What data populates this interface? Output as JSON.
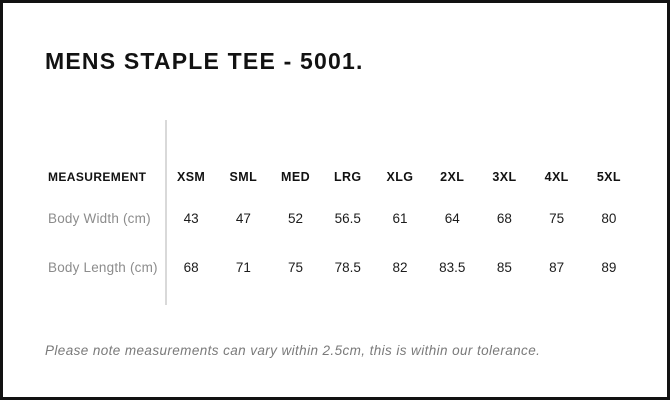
{
  "title": "MENS STAPLE TEE - 5001.",
  "table": {
    "measurement_header": "MEASUREMENT",
    "sizes": [
      "XSM",
      "SML",
      "MED",
      "LRG",
      "XLG",
      "2XL",
      "3XL",
      "4XL",
      "5XL"
    ],
    "rows": [
      {
        "label": "Body Width (cm)",
        "values": [
          "43",
          "47",
          "52",
          "56.5",
          "61",
          "64",
          "68",
          "75",
          "80"
        ]
      },
      {
        "label": "Body Length (cm)",
        "values": [
          "68",
          "71",
          "75",
          "78.5",
          "82",
          "83.5",
          "85",
          "87",
          "89"
        ]
      }
    ]
  },
  "note": "Please note measurements can vary within 2.5cm, this is within our tolerance.",
  "colors": {
    "border": "#121212",
    "heading": "#121212",
    "value": "#1c1c1c",
    "muted": "#8c8c8c",
    "note": "#7a7a7a",
    "divider": "#d9d9d9",
    "bg": "#ffffff"
  }
}
